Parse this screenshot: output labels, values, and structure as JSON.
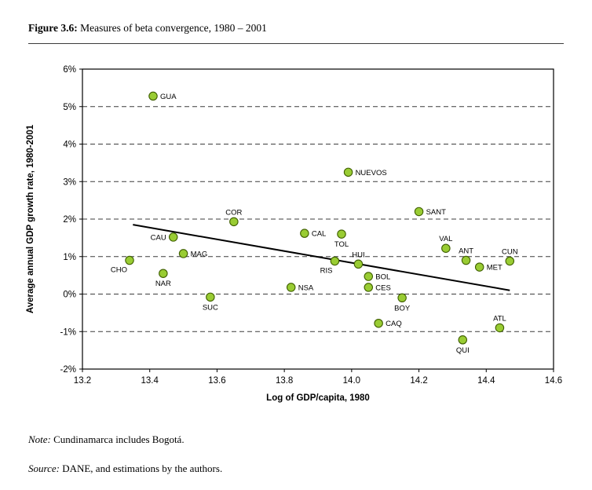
{
  "figure": {
    "label": "Figure 3.6:",
    "title": " Measures of beta convergence, 1980 – 2001"
  },
  "notes": {
    "note_label": "Note:",
    "note_text": " Cundinamarca includes Bogotá.",
    "source_label": "Source:",
    "source_text": " DANE, and estimations by the authors."
  },
  "chart_data": {
    "type": "scatter",
    "title": "Figure 3.6: Measures of beta convergence, 1980 – 2001",
    "xlabel": "Log of GDP/capita, 1980",
    "ylabel": "Average annual GDP growth rate, 1980-2001",
    "xlim": [
      13.2,
      14.6
    ],
    "ylim": [
      -2,
      6
    ],
    "x_ticks": [
      13.2,
      13.4,
      13.6,
      13.8,
      14.0,
      14.2,
      14.4,
      14.6
    ],
    "x_tick_labels": [
      "13.2",
      "13.4",
      "13.6",
      "13.8",
      "14.0",
      "14.2",
      "14.4",
      "14.6"
    ],
    "y_ticks": [
      6,
      5,
      4,
      3,
      2,
      1,
      0,
      -1,
      -2
    ],
    "y_tick_labels": [
      "6%",
      "5%",
      "4%",
      "3%",
      "2%",
      "1%",
      "0%",
      "-1%",
      "-2%"
    ],
    "grid": "horizontal-dashed",
    "legend": "none",
    "point_color": "#99CC33",
    "point_border": "#3F5F00",
    "points": [
      {
        "label": "GUA",
        "x": 13.41,
        "y": 5.28,
        "label_pos": "right"
      },
      {
        "label": "NUEVOS",
        "x": 13.99,
        "y": 3.25,
        "label_pos": "right"
      },
      {
        "label": "SANT",
        "x": 14.2,
        "y": 2.2,
        "label_pos": "right"
      },
      {
        "label": "COR",
        "x": 13.65,
        "y": 1.93,
        "label_pos": "above"
      },
      {
        "label": "CAL",
        "x": 13.86,
        "y": 1.62,
        "label_pos": "right"
      },
      {
        "label": "TOL",
        "x": 13.97,
        "y": 1.6,
        "label_pos": "below"
      },
      {
        "label": "CAU",
        "x": 13.47,
        "y": 1.52,
        "label_pos": "left"
      },
      {
        "label": "VAL",
        "x": 14.28,
        "y": 1.22,
        "label_pos": "above"
      },
      {
        "label": "MAG",
        "x": 13.5,
        "y": 1.08,
        "label_pos": "right"
      },
      {
        "label": "CHO",
        "x": 13.34,
        "y": 0.9,
        "label_pos": "below-left"
      },
      {
        "label": "ANT",
        "x": 14.34,
        "y": 0.9,
        "label_pos": "above"
      },
      {
        "label": "CUN",
        "x": 14.47,
        "y": 0.88,
        "label_pos": "above"
      },
      {
        "label": "RIS",
        "x": 13.95,
        "y": 0.88,
        "label_pos": "below-left"
      },
      {
        "label": "HUI",
        "x": 14.02,
        "y": 0.8,
        "label_pos": "above"
      },
      {
        "label": "MET",
        "x": 14.38,
        "y": 0.72,
        "label_pos": "right"
      },
      {
        "label": "NAR",
        "x": 13.44,
        "y": 0.55,
        "label_pos": "below"
      },
      {
        "label": "BOL",
        "x": 14.05,
        "y": 0.47,
        "label_pos": "right"
      },
      {
        "label": "CES",
        "x": 14.05,
        "y": 0.18,
        "label_pos": "right"
      },
      {
        "label": "NSA",
        "x": 13.82,
        "y": 0.18,
        "label_pos": "right"
      },
      {
        "label": "SUC",
        "x": 13.58,
        "y": -0.08,
        "label_pos": "below"
      },
      {
        "label": "BOY",
        "x": 14.15,
        "y": -0.1,
        "label_pos": "below"
      },
      {
        "label": "CAQ",
        "x": 14.08,
        "y": -0.78,
        "label_pos": "right"
      },
      {
        "label": "ATL",
        "x": 14.44,
        "y": -0.9,
        "label_pos": "above"
      },
      {
        "label": "QUI",
        "x": 14.33,
        "y": -1.22,
        "label_pos": "below"
      }
    ],
    "trendline": {
      "x1": 13.35,
      "y1": 1.85,
      "x2": 14.47,
      "y2": 0.1,
      "color": "#000000"
    }
  }
}
